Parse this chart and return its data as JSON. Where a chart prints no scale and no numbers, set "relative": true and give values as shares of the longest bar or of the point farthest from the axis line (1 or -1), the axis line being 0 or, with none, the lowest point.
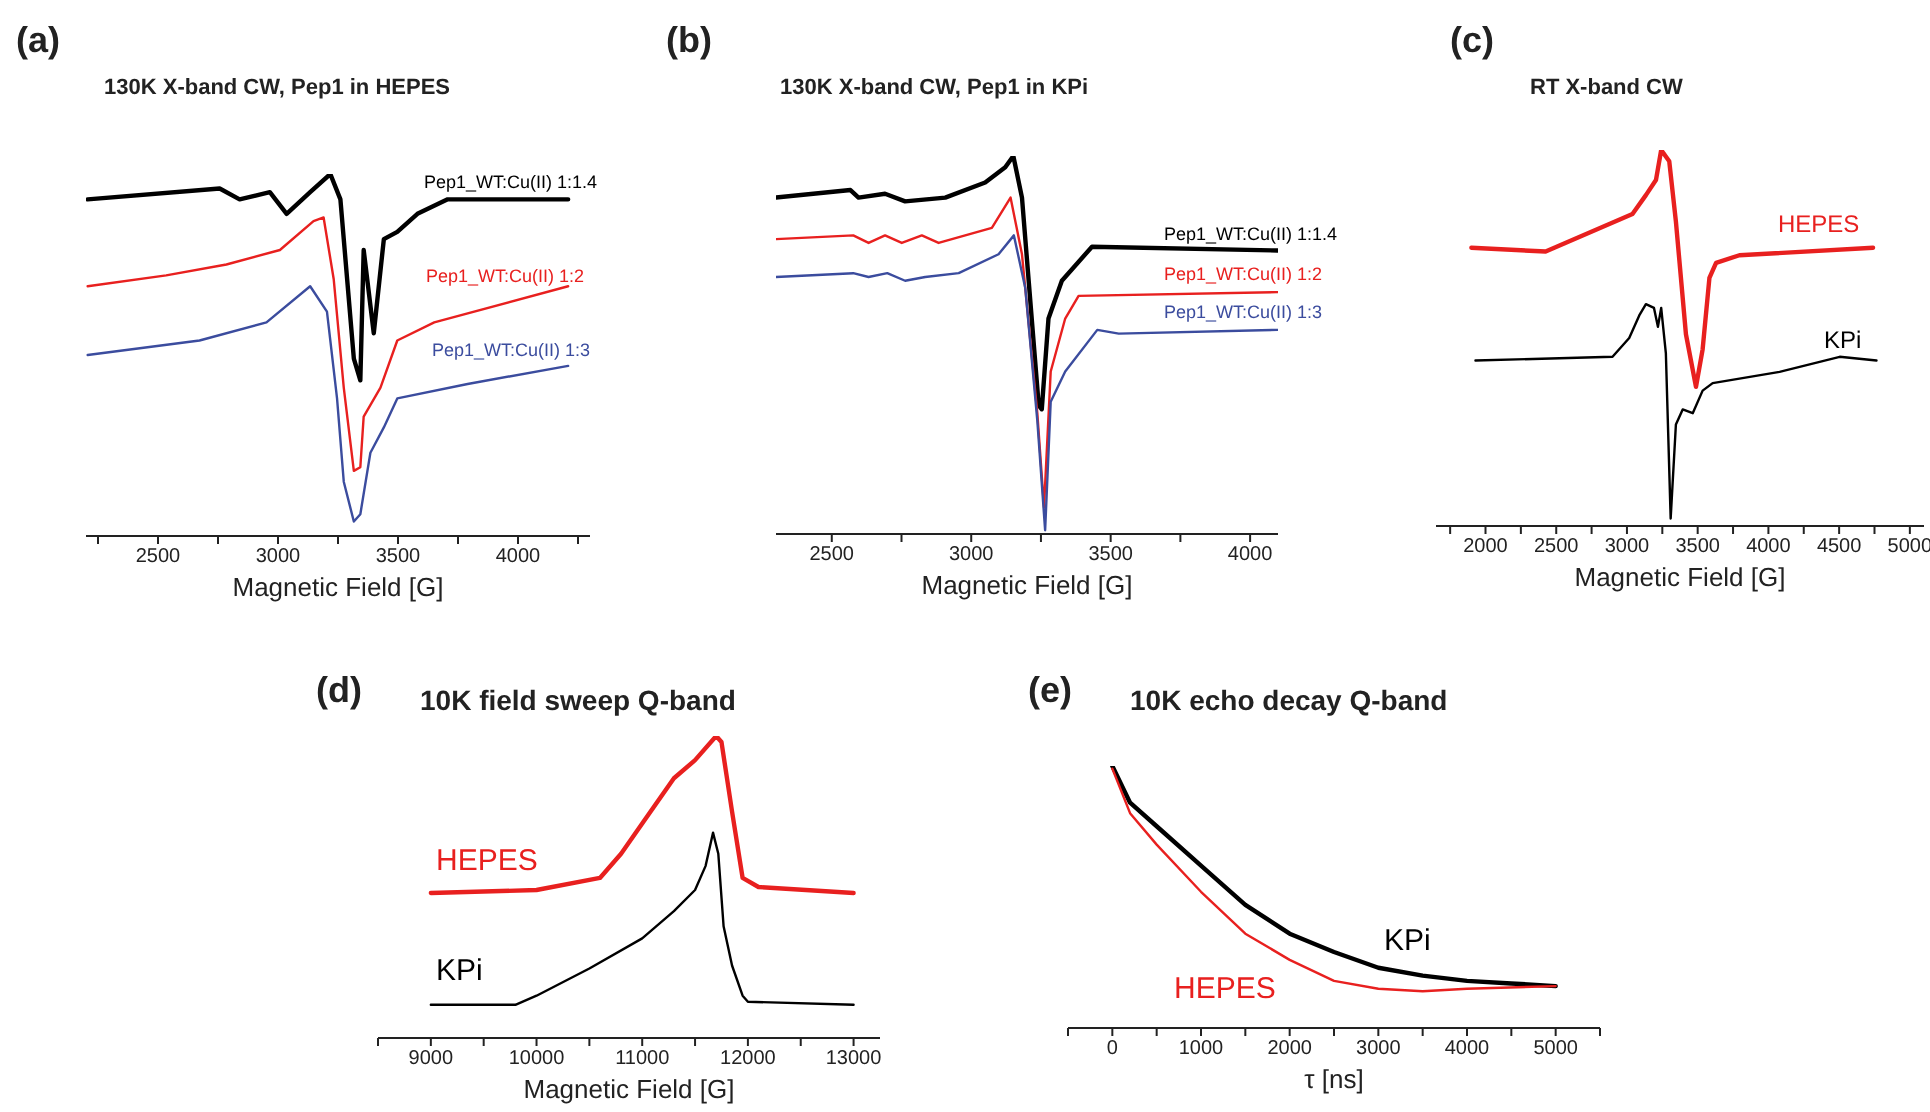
{
  "chart_data": [
    {
      "type": "line",
      "relative": true,
      "title": "130K X-band CW, Pep1 in HEPES",
      "xlabel": "Magnetic Field [G]",
      "annotations": [
        "(a)"
      ],
      "xlim": [
        2200,
        4300
      ],
      "xticks": [
        {
          "value": 2250,
          "label": null
        },
        2500,
        {
          "value": 2750,
          "label": null
        },
        3000,
        {
          "value": 3250,
          "label": null
        },
        3500,
        {
          "value": 3750,
          "label": null
        },
        4000,
        {
          "value": 4250,
          "label": null
        }
      ],
      "series": [
        {
          "name": "Pep1_WT:Cu(II) 1:1.4",
          "color": "#000000",
          "x": [
            2207,
            2757,
            2840,
            2966,
            3036,
            3134,
            3218,
            3260,
            3288,
            3316,
            3343,
            3357,
            3399,
            3441,
            3497,
            3581,
            3707,
            4209
          ],
          "values": [
            0.93,
            0.96,
            0.93,
            0.95,
            0.89,
            0.95,
            1.0,
            0.93,
            0.71,
            0.49,
            0.43,
            0.79,
            0.56,
            0.82,
            0.84,
            0.89,
            0.93,
            0.93
          ]
        },
        {
          "name": "Pep1_WT:Cu(II) 1:2",
          "color": "#e8201f",
          "x": [
            2207,
            2534,
            2785,
            3008,
            3148,
            3190,
            3232,
            3274,
            3316,
            3343,
            3357,
            3427,
            3497,
            3651,
            4209
          ],
          "values": [
            0.69,
            0.72,
            0.75,
            0.79,
            0.87,
            0.88,
            0.71,
            0.41,
            0.18,
            0.19,
            0.33,
            0.41,
            0.54,
            0.59,
            0.69
          ]
        },
        {
          "name": "Pep1_WT:Cu(II) 1:3",
          "color": "#3b4c9e",
          "x": [
            2207,
            2673,
            2952,
            3134,
            3204,
            3246,
            3274,
            3316,
            3343,
            3385,
            3441,
            3497,
            3790,
            4209
          ],
          "values": [
            0.5,
            0.54,
            0.59,
            0.69,
            0.62,
            0.38,
            0.15,
            0.04,
            0.06,
            0.23,
            0.3,
            0.38,
            0.42,
            0.47
          ]
        }
      ]
    },
    {
      "type": "line",
      "relative": true,
      "title": "130K X-band CW, Pep1 in KPi",
      "xlabel": "Magnetic Field [G]",
      "annotations": [
        "(b)"
      ],
      "xlim": [
        2300,
        4100
      ],
      "xticks": [
        2500,
        {
          "value": 2750,
          "label": null
        },
        3000,
        {
          "value": 3250,
          "label": null
        },
        3500,
        {
          "value": 3750,
          "label": null
        },
        4000
      ],
      "series": [
        {
          "name": "Pep1_WT:Cu(II) 1:1.4",
          "color": "#000000",
          "x": [
            2300,
            2567,
            2596,
            2691,
            2763,
            2907,
            3050,
            3122,
            3151,
            3182,
            3242,
            3253,
            3277,
            3325,
            3433,
            4098
          ],
          "values": [
            0.89,
            0.91,
            0.89,
            0.9,
            0.88,
            0.89,
            0.93,
            0.97,
            1.0,
            0.89,
            0.34,
            0.33,
            0.57,
            0.67,
            0.76,
            0.75
          ]
        },
        {
          "name": "Pep1_WT:Cu(II) 1:2",
          "color": "#e8201f",
          "x": [
            2300,
            2577,
            2632,
            2691,
            2751,
            2823,
            2883,
            3074,
            3141,
            3182,
            3237,
            3261,
            3285,
            3337,
            3385,
            4098
          ],
          "values": [
            0.78,
            0.79,
            0.77,
            0.79,
            0.77,
            0.79,
            0.77,
            0.81,
            0.89,
            0.74,
            0.32,
            0.07,
            0.43,
            0.57,
            0.63,
            0.64
          ]
        },
        {
          "name": "Pep1_WT:Cu(II) 1:3",
          "color": "#3b4c9e",
          "x": [
            2300,
            2577,
            2632,
            2699,
            2763,
            2835,
            2955,
            3098,
            3153,
            3194,
            3237,
            3265,
            3285,
            3337,
            3452,
            3529,
            4098
          ],
          "values": [
            0.68,
            0.69,
            0.68,
            0.69,
            0.67,
            0.68,
            0.69,
            0.74,
            0.79,
            0.65,
            0.3,
            0.01,
            0.35,
            0.43,
            0.54,
            0.53,
            0.54
          ]
        }
      ]
    },
    {
      "type": "line",
      "relative": true,
      "title": "RT X-band CW",
      "xlabel": "Magnetic Field [G]",
      "annotations": [
        "(c)"
      ],
      "xlim": [
        1650,
        5100
      ],
      "xticks": [
        {
          "value": 1750,
          "label": null
        },
        2000,
        {
          "value": 2250,
          "label": null
        },
        2500,
        {
          "value": 2750,
          "label": null
        },
        3000,
        {
          "value": 3250,
          "label": null
        },
        3500,
        {
          "value": 3750,
          "label": null
        },
        4000,
        {
          "value": 4250,
          "label": null
        },
        4500,
        {
          "value": 4750,
          "label": null
        },
        5000
      ],
      "series": [
        {
          "name": "HEPES",
          "color": "#e8201f",
          "x": [
            1900,
            2425,
            3039,
            3134,
            3205,
            3242,
            3299,
            3346,
            3417,
            3488,
            3535,
            3583,
            3630,
            3795,
            4740
          ],
          "values": [
            0.74,
            0.73,
            0.83,
            0.88,
            0.92,
            1.0,
            0.97,
            0.81,
            0.51,
            0.37,
            0.47,
            0.66,
            0.7,
            0.72,
            0.74
          ]
        },
        {
          "name": "KPi",
          "color": "#000000",
          "x": [
            1929,
            2898,
            3016,
            3087,
            3134,
            3191,
            3219,
            3242,
            3275,
            3309,
            3346,
            3394,
            3465,
            3535,
            3606,
            4079,
            4504,
            4764
          ],
          "values": [
            0.44,
            0.45,
            0.5,
            0.56,
            0.59,
            0.58,
            0.53,
            0.58,
            0.46,
            0.02,
            0.27,
            0.31,
            0.3,
            0.36,
            0.38,
            0.41,
            0.45,
            0.44
          ]
        }
      ]
    },
    {
      "type": "line",
      "relative": true,
      "title": "10K field sweep Q-band",
      "xlabel": "Magnetic Field [G]",
      "annotations": [
        "(d)"
      ],
      "xlim": [
        8500,
        13250
      ],
      "xticks": [
        {
          "value": 8500,
          "label": null
        },
        9000,
        {
          "value": 9500,
          "label": null
        },
        10000,
        {
          "value": 10500,
          "label": null
        },
        11000,
        {
          "value": 11500,
          "label": null
        },
        12000,
        {
          "value": 12500,
          "label": null
        },
        13000
      ],
      "series": [
        {
          "name": "HEPES",
          "color": "#e8201f",
          "x": [
            9000,
            10000,
            10600,
            10800,
            11000,
            11300,
            11500,
            11700,
            11750,
            11850,
            11950,
            12100,
            13000
          ],
          "values": [
            0.48,
            0.49,
            0.53,
            0.61,
            0.71,
            0.86,
            0.92,
            1.0,
            0.98,
            0.75,
            0.53,
            0.5,
            0.48
          ]
        },
        {
          "name": "KPi",
          "color": "#000000",
          "x": [
            9000,
            9800,
            10000,
            10500,
            11000,
            11300,
            11500,
            11600,
            11670,
            11720,
            11770,
            11850,
            11950,
            12000,
            13000
          ],
          "values": [
            0.11,
            0.11,
            0.14,
            0.23,
            0.33,
            0.42,
            0.49,
            0.57,
            0.68,
            0.61,
            0.37,
            0.24,
            0.14,
            0.12,
            0.11
          ]
        }
      ]
    },
    {
      "type": "line",
      "relative": true,
      "title": "10K echo decay Q-band",
      "xlabel": "τ [ns]",
      "annotations": [
        "(e)"
      ],
      "xlim": [
        -500,
        5500
      ],
      "xticks": [
        {
          "value": -500,
          "label": null
        },
        0,
        {
          "value": 500,
          "label": null
        },
        1000,
        {
          "value": 1500,
          "label": null
        },
        2000,
        {
          "value": 2500,
          "label": null
        },
        3000,
        {
          "value": 3500,
          "label": null
        },
        4000,
        {
          "value": 4500,
          "label": null
        },
        5000,
        {
          "value": 5500,
          "label": null
        }
      ],
      "series": [
        {
          "name": "KPi",
          "color": "#000000",
          "x": [
            0,
            200,
            500,
            1000,
            1500,
            2000,
            2500,
            3000,
            3500,
            4000,
            4500,
            5000
          ],
          "values": [
            1.0,
            0.86,
            0.77,
            0.62,
            0.47,
            0.36,
            0.29,
            0.23,
            0.2,
            0.18,
            0.17,
            0.16
          ]
        },
        {
          "name": "HEPES",
          "color": "#e8201f",
          "x": [
            0,
            200,
            500,
            1000,
            1500,
            2000,
            2500,
            3000,
            3500,
            4000,
            5000
          ],
          "values": [
            0.99,
            0.82,
            0.7,
            0.52,
            0.36,
            0.26,
            0.18,
            0.15,
            0.14,
            0.15,
            0.16
          ]
        }
      ]
    }
  ]
}
